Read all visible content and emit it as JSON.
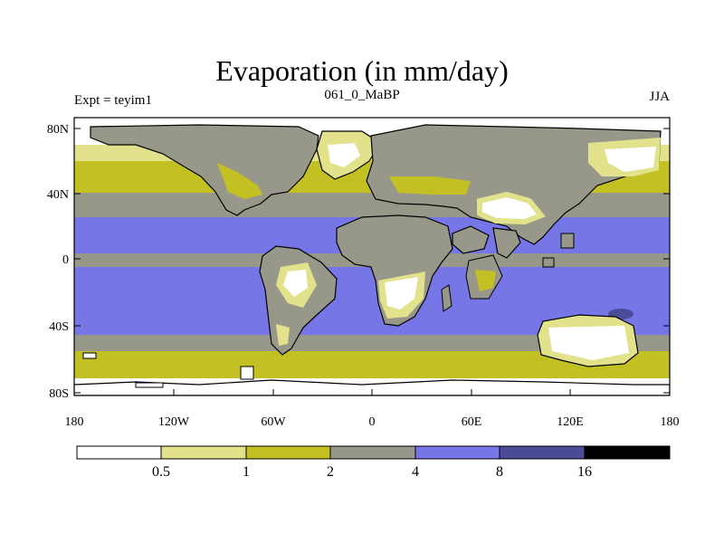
{
  "title": "Evaporation (in mm/day)",
  "subtitle_left": "Expt = teyim1",
  "subtitle_center": "061_0_MaBP",
  "subtitle_right": "JJA",
  "y_ticks": [
    "80N",
    "40N",
    "0",
    "40S",
    "80S"
  ],
  "x_ticks": [
    "180",
    "120W",
    "60W",
    "0",
    "60E",
    "120E",
    "180"
  ],
  "colorbar": {
    "colors": [
      "#ffffff",
      "#e2e28c",
      "#c2c022",
      "#98988a",
      "#7676e6",
      "#4b4b9a",
      "#000000"
    ],
    "labels": [
      "0.5",
      "1",
      "2",
      "4",
      "8",
      "16"
    ]
  },
  "colors": {
    "ocean_tropical": "#7676e6",
    "ocean_deep": "#4b4b9a",
    "mid": "#98988a",
    "olive": "#c2c022",
    "light": "#e2e28c",
    "white": "#ffffff"
  }
}
